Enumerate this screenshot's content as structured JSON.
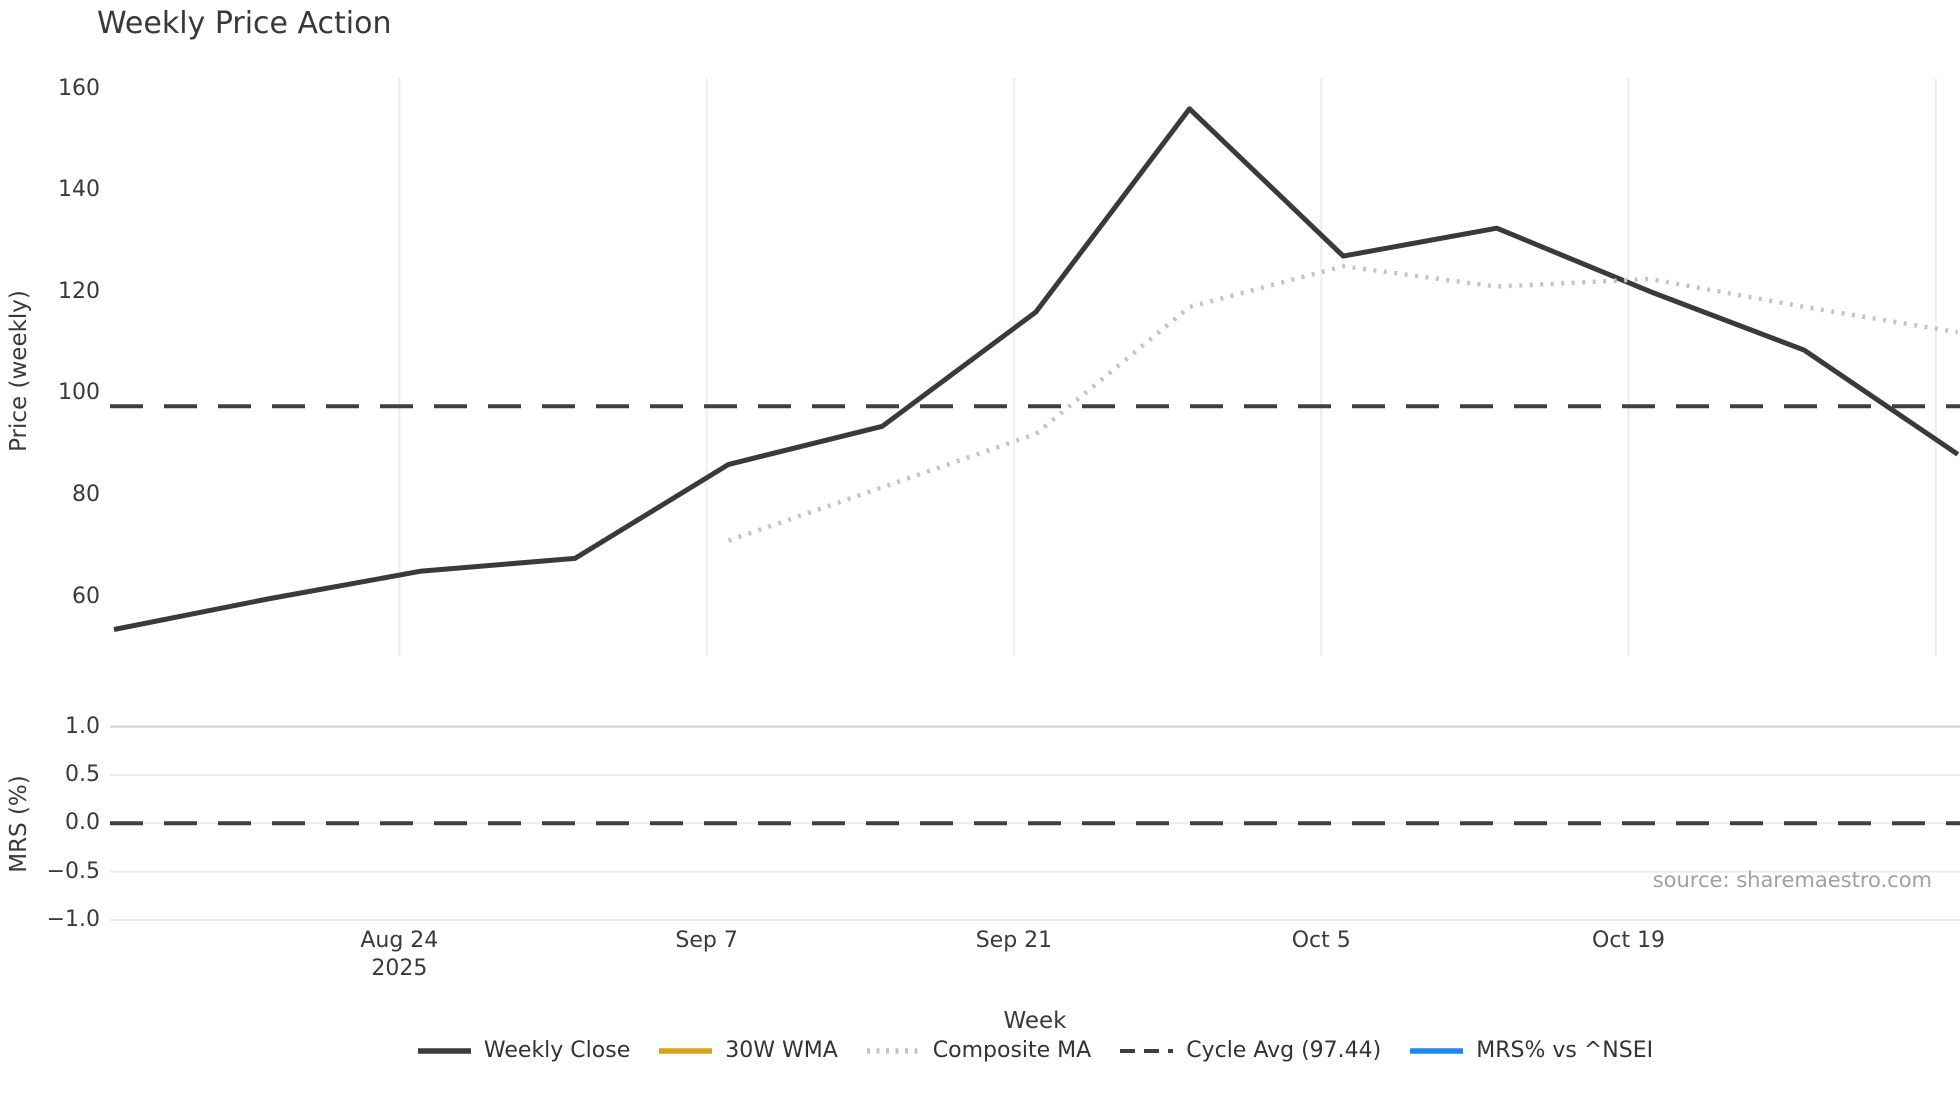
{
  "title": "Weekly Price Action",
  "axes": {
    "price_label": "Price (weekly)",
    "mrs_label": "MRS (%)",
    "x_label": "Week"
  },
  "source": "source: sharemaestro.com",
  "colors": {
    "weekly_close": "#3a3a3a",
    "wma_30w": "#d4a21e",
    "composite_ma": "#c4c4c4",
    "cycle_avg": "#3f3f3f",
    "mrs_line": "#2186eb",
    "vertical_gridline": "#ededf2",
    "mrs_grid_major": "#d2d2d7",
    "mrs_grid_minor": "#ebebf0",
    "text": "#333333",
    "muted_text": "#a1a1a1"
  },
  "chart_data": {
    "type": "line",
    "title": "Weekly Price Action",
    "xlabel": "Week",
    "ylabel_top_panel": "Price (weekly)",
    "ylabel_bottom_panel": "MRS (%)",
    "x": [
      "2025-08-11",
      "2025-08-18",
      "2025-08-25",
      "2025-09-01",
      "2025-09-08",
      "2025-09-15",
      "2025-09-22",
      "2025-09-29",
      "2025-10-06",
      "2025-10-13",
      "2025-10-20",
      "2025-10-27",
      "2025-11-03"
    ],
    "x_days": [
      0,
      7,
      14,
      21,
      28,
      35,
      42,
      49,
      56,
      63,
      70,
      77,
      84
    ],
    "x_ticks": [
      {
        "day": 13,
        "label": "Aug 24",
        "year": "2025"
      },
      {
        "day": 27,
        "label": "Sep 7",
        "year": ""
      },
      {
        "day": 41,
        "label": "Sep 21",
        "year": ""
      },
      {
        "day": 55,
        "label": "Oct 5",
        "year": ""
      },
      {
        "day": 69,
        "label": "Oct 19",
        "year": ""
      },
      {
        "day": 83,
        "label": "",
        "year": ""
      }
    ],
    "panels": {
      "price": {
        "yticks": [
          160,
          140,
          120,
          100,
          80,
          60
        ],
        "ylim": [
          48,
          161
        ],
        "grid": "vertical-only"
      },
      "mrs": {
        "yticks": [
          1.0,
          0.5,
          0.0,
          -0.5,
          -1.0
        ],
        "ytick_labels": [
          "1.0",
          "0.5",
          "0.0",
          "−0.5",
          "−1.0"
        ],
        "ylim": [
          -1.1,
          1.1
        ],
        "grid": "horizontal-only"
      }
    },
    "legend_position": "bottom-center",
    "series": [
      {
        "name": "Weekly Close",
        "panel": "price",
        "style": "solid",
        "color": "#3a3a3a",
        "values": [
          53.5,
          59.5,
          65,
          67.5,
          86,
          93.5,
          116,
          156,
          127,
          132.5,
          120,
          108.5,
          88
        ]
      },
      {
        "name": "30W WMA",
        "panel": "price",
        "style": "solid",
        "color": "#d4a21e",
        "values": []
      },
      {
        "name": "Composite MA",
        "panel": "price",
        "style": "dotted",
        "color": "#c4c4c4",
        "values": [
          null,
          null,
          null,
          null,
          71,
          81.5,
          92,
          117,
          125,
          121,
          122.5,
          117,
          112
        ]
      },
      {
        "name": "Cycle Avg (97.44)",
        "panel": "price",
        "style": "dashed",
        "color": "#3f3f3f",
        "constant": 97.44
      },
      {
        "name": "MRS% vs ^NSEI",
        "panel": "mrs",
        "style": "solid",
        "color": "#2186eb",
        "values": []
      }
    ]
  }
}
